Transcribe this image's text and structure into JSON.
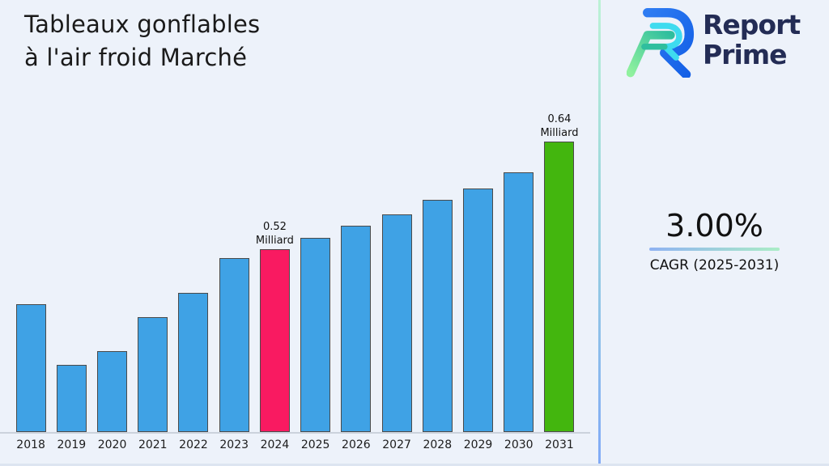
{
  "window": {
    "background": "#EDF2FA",
    "bottom_edge": "#DDE5F1"
  },
  "title": {
    "line1": "Tableaux gonflables",
    "line2": "à l'air froid Marché",
    "color": "#1A1A1A"
  },
  "brand": {
    "name_line1": "Report",
    "name_line2": "Prime",
    "text_color": "#232C55",
    "mark_colors": {
      "blue": "#1C6EF0",
      "cyan": "#3EDBEF",
      "green_light": "#90F19E",
      "green_teal": "#2FBE9E"
    }
  },
  "stat": {
    "value": "3.00%",
    "caption": "CAGR (2025-2031)",
    "underline_from": "#8FB2F2",
    "underline_to": "#ABEDC6"
  },
  "divider": {
    "top": "#BCF2D5",
    "middle": "#9AD5DD",
    "bottom": "#81AAF7"
  },
  "chart_data": {
    "type": "bar",
    "title": "Tableaux gonflables à l'air froid Marché",
    "unit": "Milliard",
    "categories": [
      "2018",
      "2019",
      "2020",
      "2021",
      "2022",
      "2023",
      "2024",
      "2025",
      "2026",
      "2027",
      "2028",
      "2029",
      "2030",
      "2031"
    ],
    "values": [
      0.459,
      0.391,
      0.406,
      0.444,
      0.471,
      0.51,
      0.52,
      0.533,
      0.546,
      0.559,
      0.575,
      0.588,
      0.606,
      0.64
    ],
    "bar_color": "#3FA2E5",
    "bar_border": "#4A4A4A",
    "highlights": {
      "2024": "#F91A61",
      "2031": "#43B60E"
    },
    "data_labels": [
      {
        "category": "2024",
        "lines": [
          "0.52",
          "Milliard"
        ]
      },
      {
        "category": "2031",
        "lines": [
          "0.64",
          "Milliard"
        ]
      }
    ],
    "axis_line_color": "#CBD2DC",
    "ylim": [
      0.318,
      0.675
    ],
    "xlabel": "",
    "ylabel": "",
    "grid": false,
    "legend": false
  }
}
